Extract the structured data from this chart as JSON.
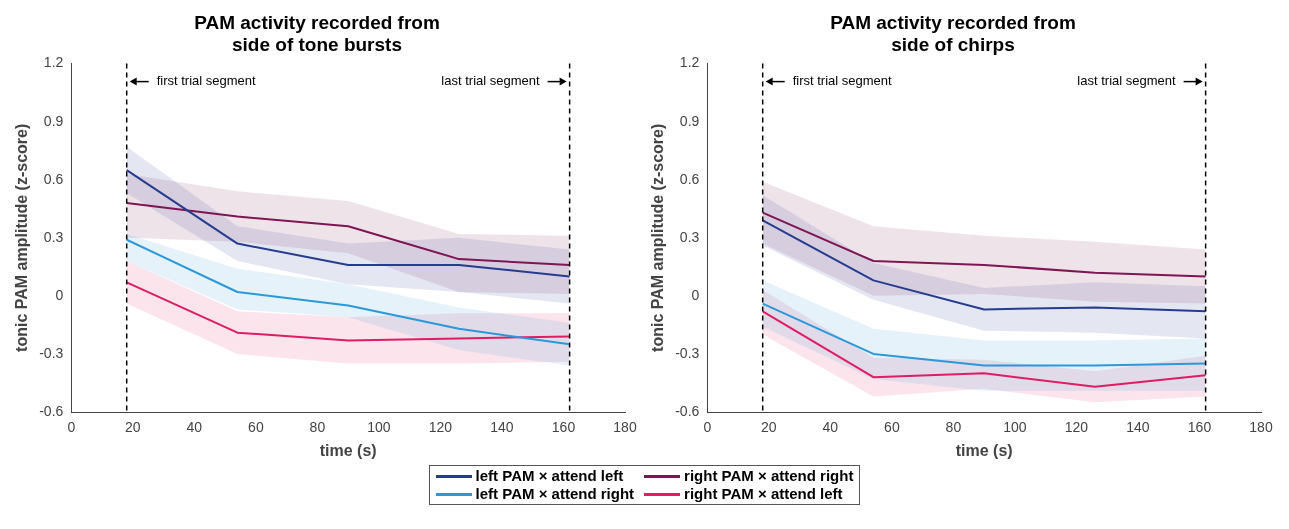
{
  "chart_data": [
    {
      "type": "line",
      "title": "PAM activity recorded from\nside of tone bursts",
      "xlabel": "time (s)",
      "ylabel": "tonic PAM amplitude (z-score)",
      "x": [
        18,
        54,
        90,
        126,
        162
      ],
      "xlim": [
        0,
        180
      ],
      "xticks": [
        0,
        20,
        40,
        60,
        80,
        100,
        120,
        140,
        160,
        180
      ],
      "ylim": [
        -0.6,
        1.2
      ],
      "yticks": [
        -0.6,
        -0.3,
        0,
        0.3,
        0.6,
        0.9,
        1.2
      ],
      "grid": false,
      "marker": "none",
      "line_style": "solid",
      "series": [
        {
          "color": "#253c8f",
          "values": [
            0.65,
            0.27,
            0.16,
            0.16,
            0.1
          ],
          "lower": [
            0.53,
            0.18,
            0.06,
            0.02,
            -0.04
          ],
          "upper": [
            0.77,
            0.36,
            0.27,
            0.3,
            0.24
          ]
        },
        {
          "color": "#2b98d9",
          "values": [
            0.29,
            0.02,
            -0.05,
            -0.17,
            -0.25
          ],
          "lower": [
            0.18,
            -0.07,
            -0.11,
            -0.28,
            -0.36
          ],
          "upper": [
            0.32,
            0.14,
            0.06,
            -0.06,
            -0.14
          ]
        },
        {
          "color": "#7e1554",
          "values": [
            0.48,
            0.41,
            0.36,
            0.19,
            0.16
          ],
          "lower": [
            0.3,
            0.28,
            0.22,
            0.02,
            0.01
          ],
          "upper": [
            0.63,
            0.54,
            0.49,
            0.32,
            0.31
          ]
        },
        {
          "color": "#de1d63",
          "values": [
            0.07,
            -0.19,
            -0.23,
            -0.22,
            -0.21
          ],
          "lower": [
            -0.04,
            -0.3,
            -0.35,
            -0.35,
            -0.34
          ],
          "upper": [
            0.18,
            -0.08,
            -0.11,
            -0.09,
            -0.09
          ]
        }
      ],
      "ref_lines": [
        {
          "axis": "x",
          "value": 18,
          "label": "first trial segment",
          "color": "#000000",
          "line_style": "dashed"
        },
        {
          "axis": "x",
          "value": 162,
          "label": "last trial segment",
          "color": "#000000",
          "line_style": "dashed"
        }
      ]
    },
    {
      "type": "line",
      "title": "PAM activity recorded from\nside of chirps",
      "xlabel": "time (s)",
      "ylabel": "tonic PAM amplitude (z-score)",
      "x": [
        18,
        54,
        90,
        126,
        162
      ],
      "xlim": [
        0,
        180
      ],
      "xticks": [
        0,
        20,
        40,
        60,
        80,
        100,
        120,
        140,
        160,
        180
      ],
      "ylim": [
        -0.6,
        1.2
      ],
      "yticks": [
        -0.6,
        -0.3,
        0,
        0.3,
        0.6,
        0.9,
        1.2
      ],
      "grid": false,
      "legend": "bottom",
      "marker": "none",
      "line_style": "solid",
      "series": [
        {
          "name": "left PAM × attend left",
          "color": "#253c8f",
          "values": [
            0.39,
            0.08,
            -0.07,
            -0.06,
            -0.08
          ],
          "lower": [
            0.26,
            -0.02,
            -0.18,
            -0.19,
            -0.22
          ],
          "upper": [
            0.52,
            0.17,
            0.04,
            0.07,
            0.05
          ]
        },
        {
          "name": "left PAM × attend right",
          "color": "#2b98d9",
          "values": [
            -0.04,
            -0.3,
            -0.36,
            -0.36,
            -0.35
          ],
          "lower": [
            -0.16,
            -0.43,
            -0.49,
            -0.49,
            -0.49
          ],
          "upper": [
            0.08,
            -0.17,
            -0.23,
            -0.23,
            -0.22
          ]
        },
        {
          "name": "right PAM × attend right",
          "color": "#7e1554",
          "values": [
            0.43,
            0.18,
            0.16,
            0.12,
            0.1
          ],
          "lower": [
            0.27,
            0,
            0.01,
            -0.03,
            -0.04
          ],
          "upper": [
            0.59,
            0.36,
            0.31,
            0.28,
            0.24
          ]
        },
        {
          "name": "right PAM × attend left",
          "color": "#de1d63",
          "values": [
            -0.08,
            -0.42,
            -0.4,
            -0.47,
            -0.41
          ],
          "lower": [
            -0.2,
            -0.52,
            -0.48,
            -0.55,
            -0.52
          ],
          "upper": [
            0.03,
            -0.32,
            -0.33,
            -0.39,
            -0.31
          ]
        }
      ],
      "ref_lines": [
        {
          "axis": "x",
          "value": 18,
          "label": "first trial segment",
          "color": "#000000",
          "line_style": "dashed"
        },
        {
          "axis": "x",
          "value": 162,
          "label": "last trial segment",
          "color": "#000000",
          "line_style": "dashed"
        }
      ]
    }
  ]
}
